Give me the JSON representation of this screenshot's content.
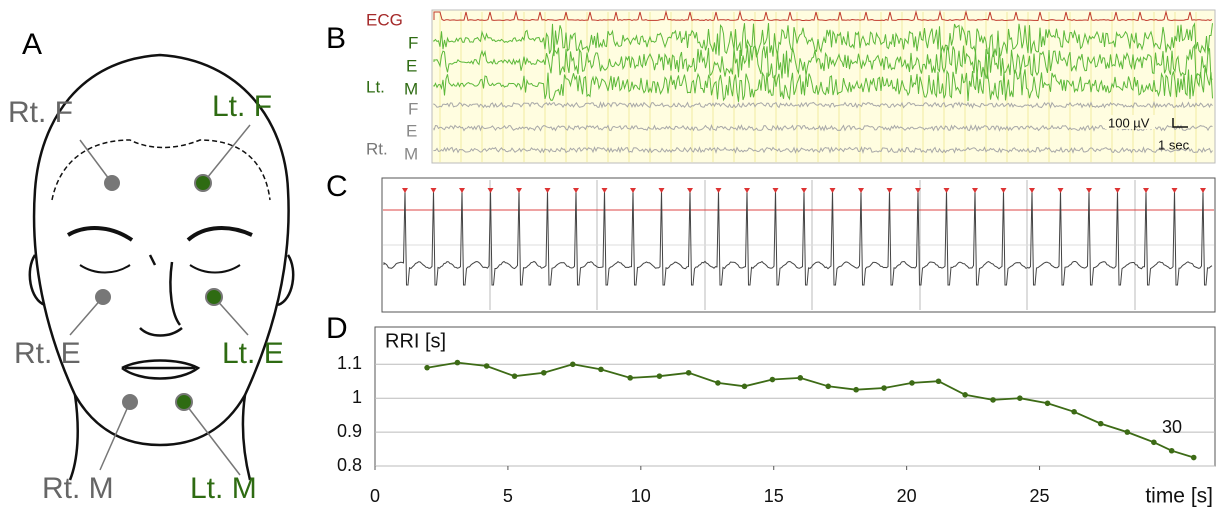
{
  "panels": {
    "a": "A",
    "b": "B",
    "c": "C",
    "d": "D"
  },
  "face": {
    "rt_f": "Rt. F",
    "lt_f": "Lt. F",
    "rt_e": "Rt. E",
    "lt_e": "Lt. E",
    "rt_m": "Rt. M",
    "lt_m": "Lt. M"
  },
  "emg": {
    "ecg": "ECG",
    "lt": "Lt.",
    "rt": "Rt.",
    "lt_channels": [
      "F",
      "E",
      "M"
    ],
    "rt_channels": [
      "F",
      "E",
      "M"
    ],
    "scale_amp": "100 µV",
    "scale_time": "1 sec"
  },
  "chart_data": {
    "type": "line",
    "y_label": "RRI [s]",
    "x_label": "time [s]",
    "annotations": [
      "30"
    ],
    "x": [
      1.96,
      3.1,
      4.2,
      5.25,
      6.35,
      7.44,
      8.5,
      9.6,
      10.7,
      11.8,
      12.9,
      13.9,
      14.95,
      16,
      17.05,
      18.1,
      19.15,
      20.2,
      21.2,
      22.2,
      23.25,
      24.26,
      25.3,
      26.3,
      27.3,
      28.3,
      29.3,
      29.97,
      30.8
    ],
    "values": [
      1.09,
      1.105,
      1.095,
      1.065,
      1.075,
      1.1,
      1.085,
      1.06,
      1.065,
      1.075,
      1.045,
      1.035,
      1.055,
      1.06,
      1.035,
      1.025,
      1.03,
      1.045,
      1.05,
      1.01,
      0.995,
      1.0,
      0.985,
      0.96,
      0.925,
      0.9,
      0.87,
      0.845,
      0.825
    ],
    "color": "#3d6b16",
    "xlim": [
      0,
      31.6
    ],
    "ylim": [
      0.8,
      1.21
    ],
    "xticks": [
      0,
      5,
      10,
      15,
      20,
      25
    ],
    "yticks": [
      0.8,
      0.9,
      1,
      1.1
    ],
    "grid": true
  }
}
